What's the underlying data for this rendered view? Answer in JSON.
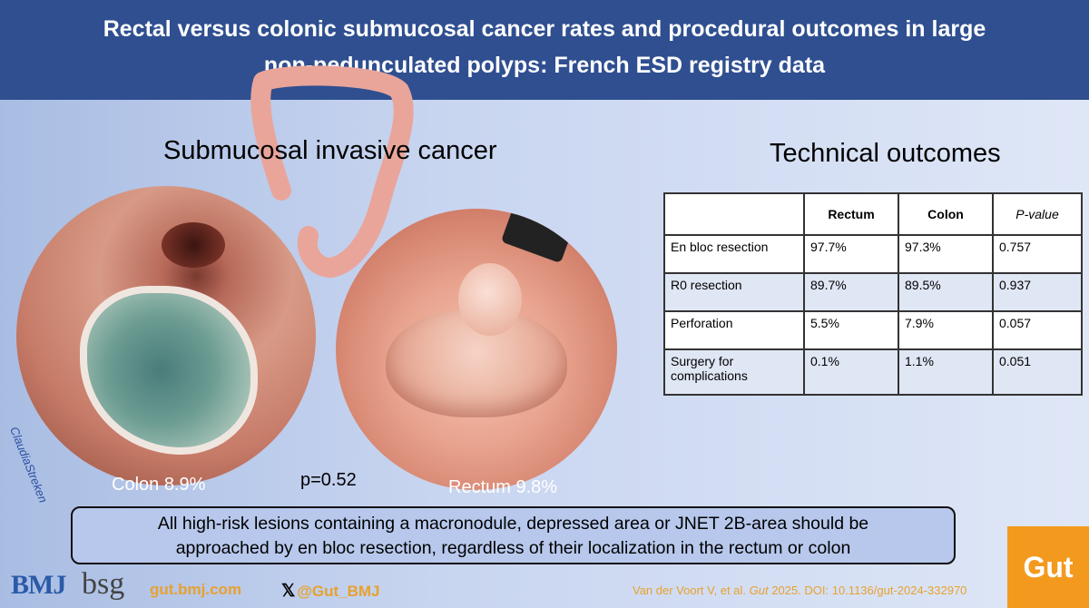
{
  "header": {
    "title_line1": "Rectal versus colonic submucosal cancer rates and procedural outcomes in large",
    "title_line2": "non-pedunculated polyps: French ESD registry data"
  },
  "left_panel": {
    "title": "Submucosal invasive cancer",
    "colon_label": "Colon 8.9%",
    "rectum_label": "Rectum 9.8%",
    "p_value": "p=0.52",
    "artist_signature": "ClaudiaStreken"
  },
  "right_panel": {
    "title": "Technical outcomes",
    "table": {
      "headers": [
        "",
        "Rectum",
        "Colon",
        "P-value"
      ],
      "rows": [
        [
          "En bloc resection",
          "97.7%",
          "97.3%",
          "0.757"
        ],
        [
          "R0 resection",
          "89.7%",
          "89.5%",
          "0.937"
        ],
        [
          "Perforation",
          "5.5%",
          "7.9%",
          "0.057"
        ],
        [
          "Surgery for complications",
          "0.1%",
          "1.1%",
          "0.051"
        ]
      ]
    }
  },
  "conclusion": {
    "line1": "All high-risk lesions containing a macronodule, depressed area or JNET 2B-area should be",
    "line2": "approached by en bloc resection, regardless of their localization in the rectum or colon"
  },
  "footer": {
    "bmj_logo": "BMJ",
    "bsg_logo": "bsg",
    "website": "gut.bmj.com",
    "twitter_handle": "@Gut_BMJ",
    "citation_authors": "Van der Voort V, et al.",
    "citation_journal": "Gut",
    "citation_rest": "2025. DOI: 10.1136/gut-2024-332970",
    "gut_logo": "Gut"
  },
  "colors": {
    "header_bg": "#2f4f90",
    "accent_orange": "#f39a1e",
    "footer_text": "#e8a12e"
  }
}
